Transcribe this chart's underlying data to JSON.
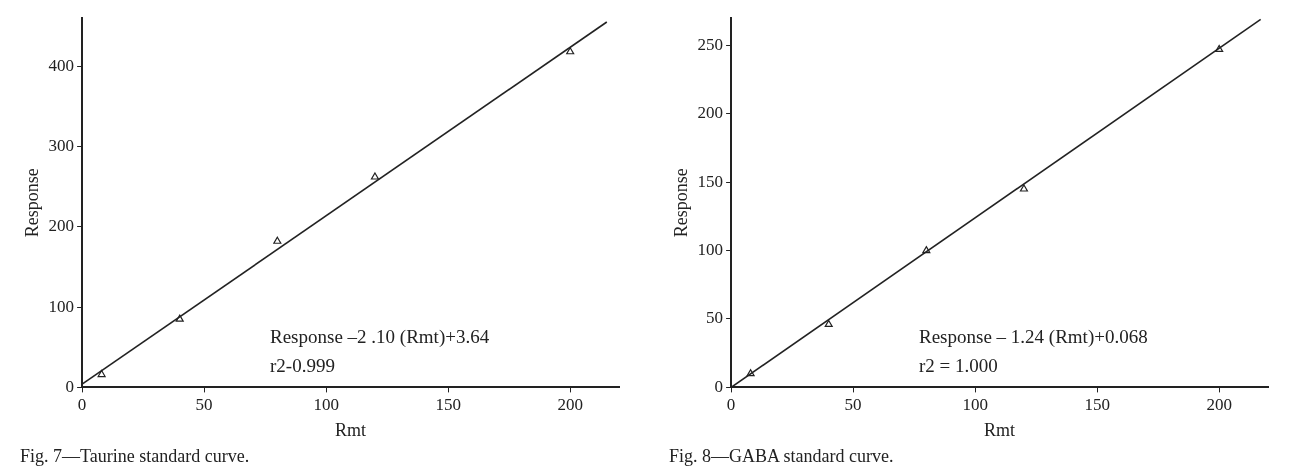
{
  "chart_data": [
    {
      "type": "scatter",
      "title": "Fig. 7—Taurine standard curve.",
      "xlabel": "Rmt",
      "ylabel": "Response",
      "xlim": [
        0,
        220
      ],
      "ylim": [
        0,
        460
      ],
      "xticks": [
        0,
        50,
        100,
        150,
        200
      ],
      "yticks": [
        0,
        100,
        200,
        300,
        400
      ],
      "marker": "triangle",
      "grid": false,
      "legend": false,
      "annotations": [
        "Response –2 .10 (Rmt)+3.64",
        "r2-0.999"
      ],
      "series": [
        {
          "type": "scatter",
          "color": "#222222",
          "x": [
            8,
            40,
            80,
            120,
            200
          ],
          "values": [
            16,
            85,
            182,
            262,
            418
          ]
        },
        {
          "type": "line",
          "color": "#222222",
          "marker": "none",
          "x": [
            0,
            215
          ],
          "values": [
            4,
            455
          ]
        }
      ]
    },
    {
      "type": "scatter",
      "title": "Fig. 8—GABA standard curve.",
      "xlabel": "Rmt",
      "ylabel": "Response",
      "xlim": [
        0,
        220
      ],
      "ylim": [
        0,
        270
      ],
      "xticks": [
        0,
        50,
        100,
        150,
        200
      ],
      "yticks": [
        0,
        50,
        100,
        150,
        200,
        250
      ],
      "marker": "triangle",
      "grid": false,
      "legend": false,
      "annotations": [
        "Response – 1.24 (Rmt)+0.068",
        "r2 = 1.000"
      ],
      "series": [
        {
          "type": "scatter",
          "color": "#222222",
          "x": [
            8,
            40,
            80,
            120,
            200
          ],
          "values": [
            10,
            46,
            100,
            145,
            247
          ]
        },
        {
          "type": "line",
          "color": "#222222",
          "marker": "none",
          "x": [
            0,
            217
          ],
          "values": [
            0,
            269
          ]
        }
      ]
    }
  ]
}
